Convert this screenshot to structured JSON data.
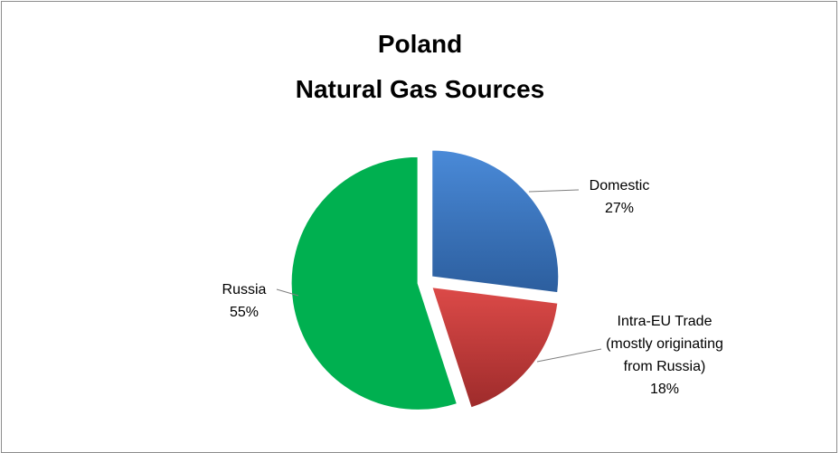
{
  "chart_data": {
    "type": "pie",
    "title": [
      "Poland",
      "Natural Gas Sources"
    ],
    "categories": [
      "Domestic",
      "Intra-EU Trade (mostly originating from Russia)",
      "Russia"
    ],
    "values": [
      27,
      18,
      55
    ],
    "value_labels": [
      "27%",
      "18%",
      "55%"
    ],
    "colors": [
      [
        "#4a8ad8",
        "#2c5e9e"
      ],
      [
        "#dc4a48",
        "#9e2b2b"
      ],
      [
        "#00b050",
        "#00b050"
      ]
    ],
    "exploded": true
  }
}
